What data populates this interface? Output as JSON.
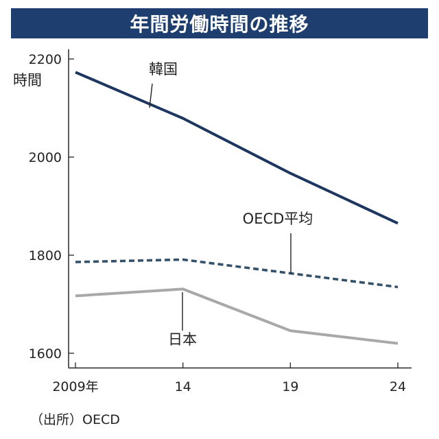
{
  "title": "年間労働時間の推移",
  "source": "（出所）OECD",
  "colors": {
    "title_bar": "#1d3e6e",
    "korea": "#1c3660",
    "oecd": "#33516a",
    "japan": "#a8a8a8",
    "axis": "#333333"
  },
  "chart_data": {
    "type": "line",
    "title": "年間労働時間の推移",
    "ylabel": "時間",
    "y_unit_label": "時間",
    "xlabel": "",
    "x": [
      2009,
      2014,
      2019,
      2024
    ],
    "x_tick_labels": [
      "2009年",
      "14",
      "19",
      "24"
    ],
    "y_ticks": [
      1600,
      1800,
      2000,
      2200
    ],
    "y_tick_labels": [
      "1600",
      "1800",
      "2000",
      "2200"
    ],
    "ylim": [
      1570,
      2220
    ],
    "grid": false,
    "legend": "inline labels",
    "series": [
      {
        "name": "韓国",
        "style": "solid",
        "color": "#1c3660",
        "values": [
          2173,
          2079,
          1967,
          1865
        ]
      },
      {
        "name": "OECD平均",
        "style": "dashed",
        "color": "#33516a",
        "values": [
          1786,
          1791,
          1763,
          1735
        ]
      },
      {
        "name": "日本",
        "style": "solid",
        "color": "#a8a8a8",
        "values": [
          1717,
          1731,
          1646,
          1620
        ]
      }
    ]
  }
}
